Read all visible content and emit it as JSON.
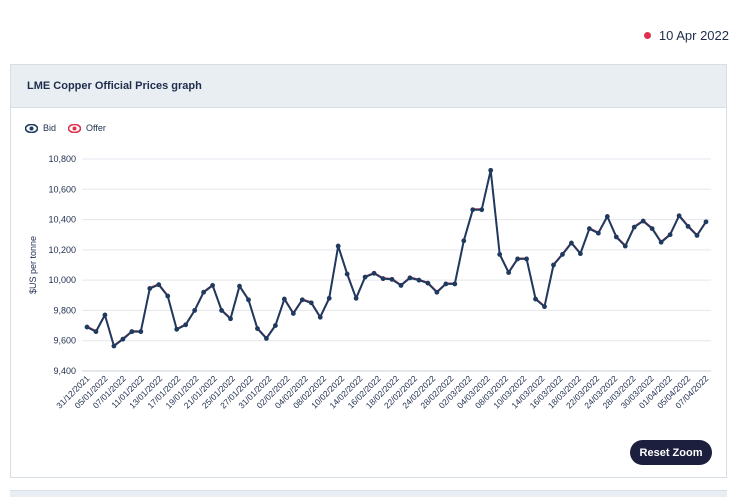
{
  "header": {
    "date": "10 Apr 2022"
  },
  "card": {
    "title": "LME Copper Official Prices graph"
  },
  "legend": {
    "bid_label": "Bid",
    "offer_label": "Offer",
    "bid_color": "#1f3a5f",
    "offer_color": "#e0304e"
  },
  "reset_zoom_label": "Reset Zoom",
  "chart_data": {
    "type": "line",
    "ylabel": "$US per tonne",
    "ylim": [
      9400,
      10800
    ],
    "yticks": [
      "10,800",
      "10,600",
      "10,400",
      "10,200",
      "10,000",
      "9,800",
      "9,600",
      "9,400"
    ],
    "xticks": [
      "31/12/2021",
      "05/01/2022",
      "07/01/2022",
      "11/01/2022",
      "13/01/2022",
      "17/01/2022",
      "19/01/2022",
      "21/01/2022",
      "25/01/2022",
      "27/01/2022",
      "31/01/2022",
      "02/02/2022",
      "04/02/2022",
      "08/02/2022",
      "10/02/2022",
      "14/02/2022",
      "16/02/2022",
      "18/02/2022",
      "22/02/2022",
      "24/02/2022",
      "28/02/2022",
      "02/03/2022",
      "04/03/2022",
      "08/03/2022",
      "10/03/2022",
      "14/03/2022",
      "16/03/2022",
      "18/03/2022",
      "22/03/2022",
      "24/03/2022",
      "28/03/2022",
      "30/03/2022",
      "01/04/2022",
      "05/04/2022",
      "07/04/2022"
    ],
    "series": [
      {
        "name": "Bid",
        "values": [
          9690,
          9660,
          9770,
          9565,
          9610,
          9660,
          9660,
          9945,
          9970,
          9895,
          9675,
          9705,
          9800,
          9920,
          9965,
          9800,
          9745,
          9960,
          9870,
          9680,
          9615,
          9700,
          9875,
          9780,
          9870,
          9850,
          9755,
          9880,
          10225,
          10040,
          9880,
          10020,
          10045,
          10010,
          10005,
          9965,
          10015,
          10000,
          9980,
          9920,
          9975,
          9975,
          10260,
          10465,
          10465,
          10725,
          10170,
          10050,
          10140,
          10140,
          9875,
          9825,
          10100,
          10170,
          10245,
          10175,
          10340,
          10310,
          10420,
          10285,
          10225,
          10350,
          10390,
          10340,
          10250,
          10300,
          10425,
          10355,
          10295,
          10385
        ]
      },
      {
        "name": "Offer",
        "values": [
          9695,
          9665,
          9775,
          9570,
          9615,
          9665,
          9665,
          9950,
          9975,
          9900,
          9680,
          9710,
          9805,
          9925,
          9970,
          9805,
          9750,
          9965,
          9875,
          9685,
          9620,
          9705,
          9880,
          9785,
          9875,
          9855,
          9760,
          9885,
          10230,
          10045,
          9885,
          10025,
          10050,
          10015,
          10010,
          9970,
          10020,
          10005,
          9985,
          9925,
          9980,
          9980,
          10265,
          10470,
          10470,
          10730,
          10175,
          10055,
          10145,
          10145,
          9880,
          9830,
          10105,
          10175,
          10250,
          10180,
          10345,
          10315,
          10425,
          10290,
          10230,
          10355,
          10395,
          10345,
          10255,
          10305,
          10430,
          10360,
          10300,
          10390
        ]
      }
    ]
  }
}
